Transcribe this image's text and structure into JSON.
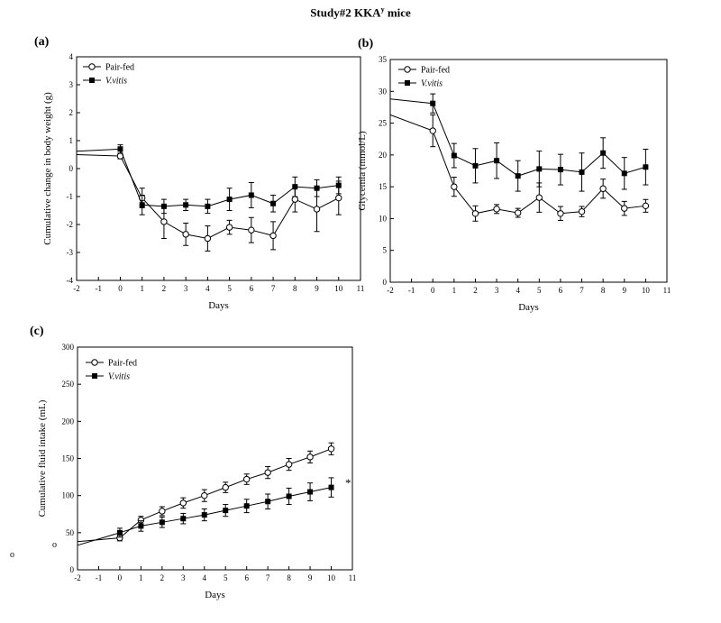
{
  "page": {
    "title_main": "Study#2   KKA",
    "title_sup": "y",
    "title_tail": " mice",
    "stray_marks": [
      "o",
      "o"
    ]
  },
  "chart_data": [
    {
      "type": "line",
      "panel_label": "(a)",
      "xlabel": "Days",
      "ylabel": "Cumulative change in body weight (g)",
      "xlim": [
        -2,
        11
      ],
      "ylim": [
        -4,
        4
      ],
      "xticks": [
        -2,
        -1,
        0,
        1,
        2,
        3,
        4,
        5,
        6,
        7,
        8,
        9,
        10,
        11
      ],
      "yticks": [
        -4,
        -3,
        -2,
        -1,
        0,
        1,
        2,
        3,
        4
      ],
      "grid": false,
      "legend_position": "top-left",
      "x": [
        0,
        1,
        2,
        3,
        4,
        5,
        6,
        7,
        8,
        9,
        10
      ],
      "series": [
        {
          "name": "Pair-fed",
          "marker": "open-circle",
          "values": [
            0.45,
            -1.05,
            -1.9,
            -2.35,
            -2.5,
            -2.1,
            -2.2,
            -2.4,
            -1.1,
            -1.45,
            -1.05
          ],
          "errors": [
            0.1,
            0.35,
            0.6,
            0.4,
            0.45,
            0.25,
            0.45,
            0.5,
            0.45,
            0.8,
            0.6
          ],
          "extension": {
            "x": -2,
            "y": 0.5
          }
        },
        {
          "name": "V.vitis",
          "marker": "filled-square",
          "values": [
            0.7,
            -1.3,
            -1.35,
            -1.3,
            -1.35,
            -1.1,
            -0.95,
            -1.25,
            -0.65,
            -0.7,
            -0.6
          ],
          "errors": [
            0.15,
            0.35,
            0.25,
            0.2,
            0.25,
            0.4,
            0.45,
            0.3,
            0.35,
            0.3,
            0.3
          ],
          "extension": {
            "x": -2,
            "y": 0.62
          }
        }
      ]
    },
    {
      "type": "line",
      "panel_label": "(b)",
      "xlabel": "Days",
      "ylabel": "Glycemia (mmol/L)",
      "xlim": [
        -2,
        11
      ],
      "ylim": [
        0,
        35
      ],
      "xticks": [
        -2,
        -1,
        0,
        1,
        2,
        3,
        4,
        5,
        6,
        7,
        8,
        9,
        10,
        11
      ],
      "yticks": [
        0,
        5,
        10,
        15,
        20,
        25,
        30,
        35
      ],
      "grid": false,
      "legend_position": "top-left",
      "x": [
        0,
        1,
        2,
        3,
        4,
        5,
        6,
        7,
        8,
        9,
        10
      ],
      "series": [
        {
          "name": "Pair-fed",
          "marker": "open-circle",
          "values": [
            23.8,
            15.0,
            10.8,
            11.5,
            10.9,
            13.3,
            10.8,
            11.1,
            14.7,
            11.6,
            12.0
          ],
          "errors": [
            2.5,
            1.5,
            1.2,
            0.7,
            0.7,
            2.3,
            1.1,
            0.8,
            1.5,
            1.1,
            1.0
          ],
          "extension": {
            "x": -2,
            "y": 26.3
          }
        },
        {
          "name": "V.vitis",
          "marker": "filled-square",
          "values": [
            28.1,
            19.9,
            18.3,
            19.1,
            16.7,
            17.8,
            17.7,
            17.3,
            20.3,
            17.1,
            18.1
          ],
          "errors": [
            1.5,
            1.9,
            2.7,
            2.8,
            2.4,
            2.8,
            2.4,
            3.0,
            2.4,
            2.5,
            2.8
          ],
          "extension": {
            "x": -2,
            "y": 28.8
          }
        }
      ]
    },
    {
      "type": "line",
      "panel_label": "(c)",
      "xlabel": "Days",
      "ylabel": "Cumulative fluid intake (mL)",
      "xlim": [
        -2,
        11
      ],
      "ylim": [
        0,
        300
      ],
      "xticks": [
        -2,
        -1,
        0,
        1,
        2,
        3,
        4,
        5,
        6,
        7,
        8,
        9,
        10,
        11
      ],
      "yticks": [
        0,
        50,
        100,
        150,
        200,
        250,
        300
      ],
      "grid": false,
      "legend_position": "top-left",
      "annotation": "*",
      "x": [
        0,
        1,
        2,
        3,
        4,
        5,
        6,
        7,
        8,
        9,
        10
      ],
      "series": [
        {
          "name": "Pair-fed",
          "marker": "open-circle",
          "values": [
            43,
            67,
            79,
            90,
            100,
            111,
            122,
            131,
            142,
            152,
            163
          ],
          "errors": [
            4,
            5,
            6,
            7,
            8,
            7,
            7,
            8,
            8,
            8,
            8
          ],
          "extension": {
            "x": -2,
            "y": 38
          }
        },
        {
          "name": "V.vitis",
          "marker": "filled-square",
          "values": [
            50,
            59,
            64,
            69,
            74,
            80,
            86,
            92,
            99,
            105,
            111
          ],
          "errors": [
            6,
            7,
            7,
            7,
            8,
            8,
            9,
            10,
            11,
            12,
            13
          ],
          "extension": {
            "x": -2,
            "y": 33
          }
        }
      ]
    }
  ]
}
